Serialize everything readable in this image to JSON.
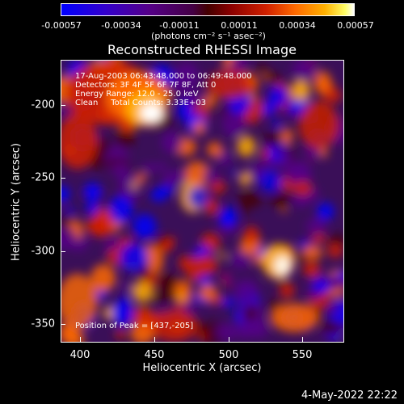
{
  "colorbar": {
    "ticks": [
      "-0.00057",
      "-0.00034",
      "-0.00011",
      "0.00011",
      "0.00034",
      "0.00057"
    ],
    "units": "(photons cm⁻² s⁻¹ asec⁻²)"
  },
  "title": "Reconstructed RHESSI Image",
  "info": {
    "line1": "17-Aug-2003 06:43:48.000 to 06:49:48.000",
    "line2": "Detectors: 3F 4F 5F 6F 7F 8F, Att 0",
    "line3": "Energy Range: 12.0 - 25.0 keV",
    "line4": "Clean     Total Counts: 3.33E+03",
    "peak": "Position of Peak = [437,-205]"
  },
  "axes": {
    "xlabel": "Heliocentric X (arcsec)",
    "ylabel": "Heliocentric Y (arcsec)",
    "xticks": [
      "400",
      "450",
      "500",
      "550"
    ],
    "yticks": [
      "-200",
      "-250",
      "-300",
      "-350"
    ]
  },
  "datestamp": "4-May-2022 22:22",
  "colors": {
    "background": "#000000",
    "text": "#ffffff",
    "colormap": [
      "#0000ff",
      "#550088",
      "#440000",
      "#d02000",
      "#ff6a00",
      "#ffb000",
      "#ffffff"
    ]
  }
}
